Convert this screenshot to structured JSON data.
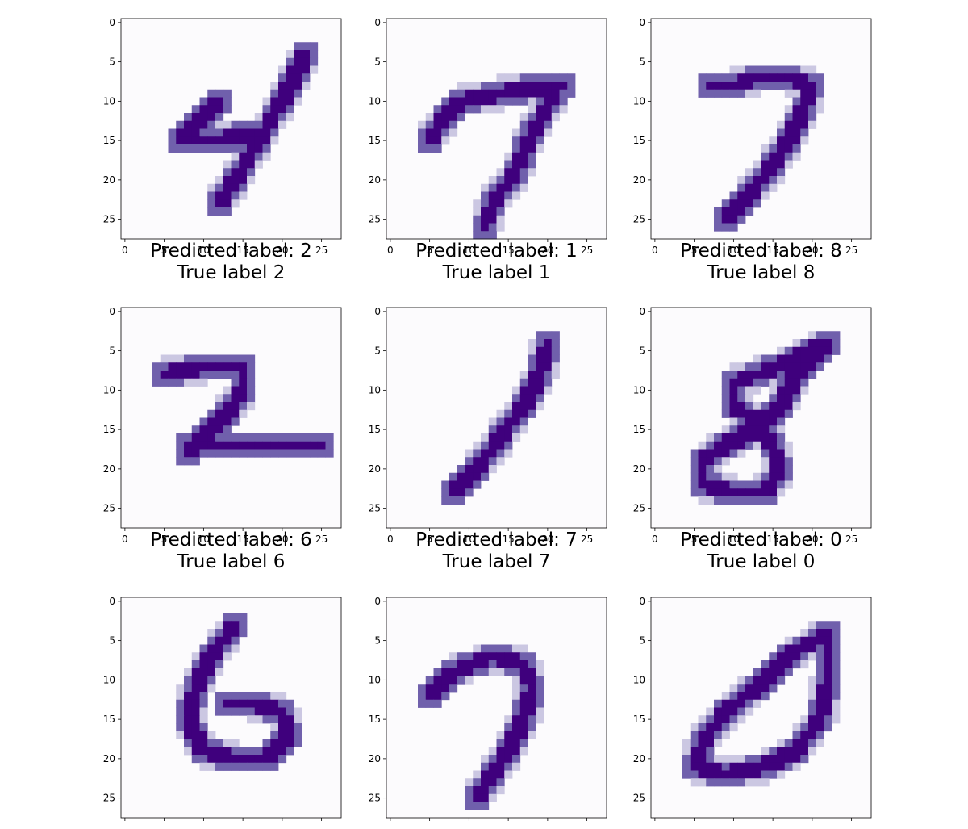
{
  "colormap": {
    "name": "Purples",
    "low": "#fcfbfd",
    "high": "#3f007d"
  },
  "image_size": 28,
  "x_ticks": [
    "0",
    "5",
    "10",
    "15",
    "20",
    "25"
  ],
  "y_ticks": [
    "0",
    "5",
    "10",
    "15",
    "20",
    "25"
  ],
  "panels": [
    {
      "digit": "4",
      "title_line1": "Predicted label: 2",
      "title_line2": "True label 2",
      "strokes": [
        [
          [
            23,
            4
          ],
          [
            20,
            10
          ],
          [
            17,
            15
          ],
          [
            14,
            20
          ],
          [
            12,
            23
          ]
        ],
        [
          [
            12,
            10
          ],
          [
            9,
            13
          ],
          [
            7,
            15
          ],
          [
            12,
            15
          ],
          [
            16,
            14
          ]
        ]
      ]
    },
    {
      "digit": "7",
      "title_line1": "Predicted label: 1",
      "title_line2": "True label 1",
      "strokes": [
        [
          [
            5,
            15
          ],
          [
            7,
            12
          ],
          [
            9,
            10
          ],
          [
            14,
            9
          ],
          [
            20,
            8
          ],
          [
            22,
            8
          ]
        ],
        [
          [
            21,
            9
          ],
          [
            18,
            14
          ],
          [
            16,
            19
          ],
          [
            13,
            23
          ],
          [
            12,
            26
          ]
        ]
      ]
    },
    {
      "digit": "7",
      "title_line1": "Predicted label: 8",
      "title_line2": "True label 8",
      "strokes": [
        [
          [
            7,
            8
          ],
          [
            10,
            8
          ],
          [
            13,
            7
          ],
          [
            17,
            7
          ],
          [
            20,
            8
          ],
          [
            19,
            11
          ],
          [
            17,
            15
          ],
          [
            15,
            18
          ],
          [
            12,
            22
          ],
          [
            9,
            25
          ]
        ]
      ]
    },
    {
      "digit": "2",
      "title_line1": "Predicted label: 6",
      "title_line2": "True label 6",
      "strokes": [
        [
          [
            5,
            8
          ],
          [
            10,
            7
          ],
          [
            15,
            7
          ],
          [
            15,
            10
          ],
          [
            13,
            13
          ],
          [
            10,
            16
          ],
          [
            8,
            18
          ]
        ],
        [
          [
            8,
            17
          ],
          [
            14,
            17
          ],
          [
            20,
            17
          ],
          [
            25,
            17
          ]
        ]
      ]
    },
    {
      "digit": "1",
      "title_line1": "Predicted label: 7",
      "title_line2": "True label 7",
      "strokes": [
        [
          [
            20,
            4
          ],
          [
            19,
            8
          ],
          [
            17,
            12
          ],
          [
            14,
            16
          ],
          [
            11,
            20
          ],
          [
            8,
            23
          ]
        ]
      ]
    },
    {
      "digit": "8",
      "title_line1": "Predicted label: 0",
      "title_line2": "True label 0",
      "strokes": [
        [
          [
            22,
            4
          ],
          [
            18,
            6
          ],
          [
            13,
            8
          ],
          [
            10,
            9
          ],
          [
            10,
            12
          ],
          [
            13,
            14
          ],
          [
            15,
            17
          ],
          [
            16,
            20
          ],
          [
            14,
            23
          ],
          [
            10,
            23
          ],
          [
            6,
            22
          ],
          [
            6,
            19
          ],
          [
            9,
            17
          ],
          [
            13,
            15
          ],
          [
            16,
            12
          ],
          [
            18,
            8
          ],
          [
            21,
            5
          ]
        ]
      ]
    },
    {
      "digit": "6",
      "title_line1": "",
      "title_line2": "",
      "strokes": [
        [
          [
            14,
            3
          ],
          [
            11,
            7
          ],
          [
            9,
            11
          ],
          [
            8,
            15
          ],
          [
            10,
            19
          ],
          [
            14,
            20
          ],
          [
            18,
            20
          ],
          [
            21,
            17
          ],
          [
            20,
            14
          ],
          [
            16,
            13
          ],
          [
            13,
            13
          ]
        ]
      ]
    },
    {
      "digit": "7",
      "title_line1": "",
      "title_line2": "",
      "strokes": [
        [
          [
            5,
            12
          ],
          [
            8,
            9
          ],
          [
            13,
            7
          ],
          [
            17,
            8
          ],
          [
            18,
            11
          ],
          [
            17,
            15
          ],
          [
            15,
            19
          ],
          [
            13,
            22
          ],
          [
            11,
            25
          ]
        ]
      ]
    },
    {
      "digit": "0",
      "title_line1": "",
      "title_line2": "",
      "strokes": [
        [
          [
            22,
            4
          ],
          [
            17,
            7
          ],
          [
            13,
            11
          ],
          [
            9,
            14
          ],
          [
            6,
            18
          ],
          [
            5,
            21
          ],
          [
            9,
            22
          ],
          [
            14,
            21
          ],
          [
            18,
            19
          ],
          [
            21,
            15
          ],
          [
            22,
            10
          ],
          [
            22,
            5
          ]
        ]
      ]
    }
  ]
}
